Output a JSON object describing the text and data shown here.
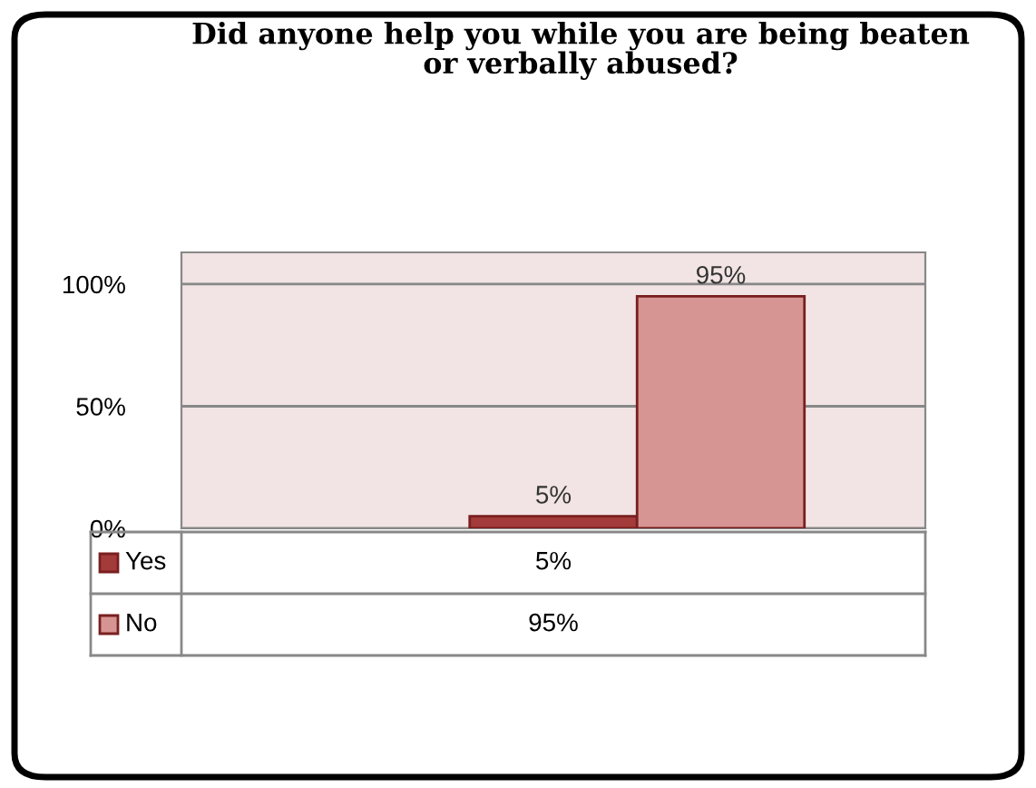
{
  "chart_data": {
    "type": "bar",
    "title": "Did anyone help you while you are being beaten or verbally abused?",
    "categories": [
      null
    ],
    "series": [
      {
        "name": "Yes",
        "color": "#a33b3b",
        "values": [
          5
        ],
        "value_labels": [
          "5%"
        ]
      },
      {
        "name": "No",
        "color": "#d69593",
        "values": [
          95
        ],
        "value_labels": [
          "95%"
        ]
      }
    ],
    "ylim": [
      0,
      113
    ],
    "yticks": [
      {
        "value": 0,
        "label": "0%"
      },
      {
        "value": 50,
        "label": "50%"
      },
      {
        "value": 100,
        "label": "100%"
      }
    ],
    "grid": "y",
    "legend": "bottom left"
  }
}
